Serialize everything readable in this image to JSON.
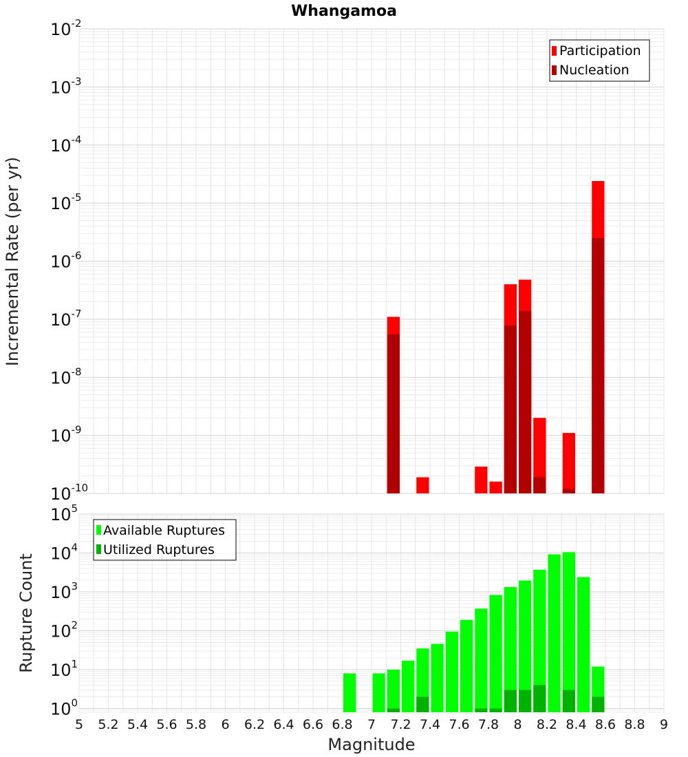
{
  "chart_data": [
    {
      "type": "bar",
      "title": "Whangamoa",
      "ylabel": "Incremental Rate (per yr)",
      "xlabel": "",
      "yscale": "log",
      "ylim": [
        1e-10,
        0.01
      ],
      "xlim": [
        5,
        9
      ],
      "bin_width": 0.1,
      "grid": true,
      "legend_position": "top-right",
      "series": [
        {
          "name": "Participation",
          "color": "#ff0000",
          "x": [
            7.15,
            7.35,
            7.75,
            7.85,
            7.95,
            8.05,
            8.15,
            8.35,
            8.55
          ],
          "values": [
            1.1e-07,
            1.9e-10,
            2.9e-10,
            1.6e-10,
            4e-07,
            4.8e-07,
            2e-09,
            1.1e-09,
            2.4e-05
          ]
        },
        {
          "name": "Nucleation",
          "color": "#b20000",
          "x": [
            7.15,
            7.95,
            8.05,
            8.15,
            8.35,
            8.55
          ],
          "values": [
            5.5e-08,
            7.8e-08,
            1.4e-07,
            1.9e-10,
            1.2e-10,
            2.5e-06
          ]
        }
      ]
    },
    {
      "type": "bar",
      "title": "",
      "ylabel": "Rupture Count",
      "xlabel": "Magnitude",
      "yscale": "log",
      "ylim": [
        0.8,
        100000.0
      ],
      "xlim": [
        5,
        9
      ],
      "bin_width": 0.1,
      "grid": true,
      "legend_position": "top-left",
      "series": [
        {
          "name": "Available Ruptures",
          "color": "#00ff00",
          "x": [
            6.85,
            7.05,
            7.15,
            7.25,
            7.35,
            7.45,
            7.55,
            7.65,
            7.75,
            7.85,
            7.95,
            8.05,
            8.15,
            8.25,
            8.35,
            8.45,
            8.55
          ],
          "values": [
            8,
            8,
            10,
            17,
            35,
            46,
            95,
            190,
            370,
            830,
            1330,
            1950,
            3700,
            9200,
            10500,
            2400,
            12
          ]
        },
        {
          "name": "Utilized Ruptures",
          "color": "#00b200",
          "x": [
            7.15,
            7.35,
            7.75,
            7.85,
            7.95,
            8.05,
            8.15,
            8.35,
            8.55
          ],
          "values": [
            1,
            2,
            1,
            1,
            3,
            3,
            4,
            3,
            2
          ]
        }
      ]
    }
  ],
  "x_ticks": [
    "5",
    "5.2",
    "5.4",
    "5.6",
    "5.8",
    "6",
    "6.2",
    "6.4",
    "6.6",
    "6.8",
    "7",
    "7.2",
    "7.4",
    "7.6",
    "7.8",
    "8",
    "8.2",
    "8.4",
    "8.6",
    "8.8",
    "9"
  ],
  "y_ticks_top": [
    {
      "base": "10",
      "exp": "-10",
      "value": 1e-10
    },
    {
      "base": "10",
      "exp": "-9",
      "value": 1e-09
    },
    {
      "base": "10",
      "exp": "-8",
      "value": 1e-08
    },
    {
      "base": "10",
      "exp": "-7",
      "value": 1e-07
    },
    {
      "base": "10",
      "exp": "-6",
      "value": 1e-06
    },
    {
      "base": "10",
      "exp": "-5",
      "value": 1e-05
    },
    {
      "base": "10",
      "exp": "-4",
      "value": 0.0001
    },
    {
      "base": "10",
      "exp": "-3",
      "value": 0.001
    },
    {
      "base": "10",
      "exp": "-2",
      "value": 0.01
    }
  ],
  "y_ticks_bottom": [
    {
      "base": "10",
      "exp": "0",
      "value": 1
    },
    {
      "base": "10",
      "exp": "1",
      "value": 10
    },
    {
      "base": "10",
      "exp": "2",
      "value": 100
    },
    {
      "base": "10",
      "exp": "3",
      "value": 1000
    },
    {
      "base": "10",
      "exp": "4",
      "value": 10000
    },
    {
      "base": "10",
      "exp": "5",
      "value": 100000
    }
  ]
}
